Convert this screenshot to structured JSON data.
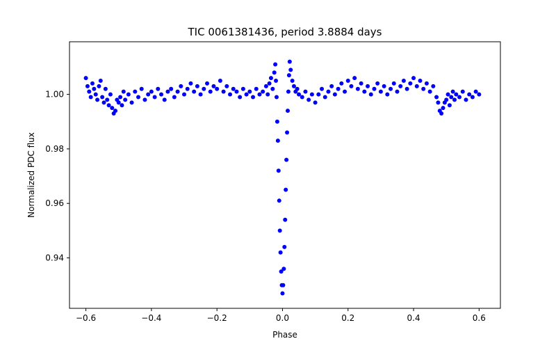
{
  "chart_data": {
    "type": "scatter",
    "title": "TIC 0061381436, period 3.8884 days",
    "xlabel": "Phase",
    "ylabel": "Normalized PDC flux",
    "xlim": [
      -0.65,
      0.665
    ],
    "ylim": [
      0.9215,
      1.0193
    ],
    "x_ticks": [
      -0.6,
      -0.4,
      -0.2,
      0.0,
      0.2,
      0.4,
      0.6
    ],
    "x_tick_labels": [
      "−0.6",
      "−0.4",
      "−0.2",
      "0.0",
      "0.2",
      "0.4",
      "0.6"
    ],
    "y_ticks": [
      0.94,
      0.96,
      0.98,
      1.0
    ],
    "y_tick_labels": [
      "0.94",
      "0.96",
      "0.98",
      "1.00"
    ],
    "grid": false,
    "legend": "none",
    "marker_color": "#0000ff",
    "series": [
      {
        "points": [
          [
            -0.6,
            1.006
          ],
          [
            -0.595,
            1.003
          ],
          [
            -0.59,
            1.001
          ],
          [
            -0.585,
            0.999
          ],
          [
            -0.58,
            1.004
          ],
          [
            -0.575,
            1.002
          ],
          [
            -0.57,
            1.0
          ],
          [
            -0.565,
            0.998
          ],
          [
            -0.56,
            1.003
          ],
          [
            -0.555,
            1.005
          ],
          [
            -0.55,
            0.999
          ],
          [
            -0.545,
            0.997
          ],
          [
            -0.54,
            1.002
          ],
          [
            -0.535,
            0.998
          ],
          [
            -0.53,
            0.996
          ],
          [
            -0.525,
            1.0
          ],
          [
            -0.52,
            0.995
          ],
          [
            -0.515,
            0.993
          ],
          [
            -0.51,
            0.994
          ],
          [
            -0.505,
            0.998
          ],
          [
            -0.5,
            0.997
          ],
          [
            -0.495,
            0.999
          ],
          [
            -0.49,
            0.996
          ],
          [
            -0.485,
            1.001
          ],
          [
            -0.48,
            0.998
          ],
          [
            -0.47,
            1.0
          ],
          [
            -0.46,
            0.997
          ],
          [
            -0.45,
            1.001
          ],
          [
            -0.44,
            0.999
          ],
          [
            -0.43,
            1.002
          ],
          [
            -0.42,
            0.998
          ],
          [
            -0.41,
            1.0
          ],
          [
            -0.4,
            1.001
          ],
          [
            -0.39,
            0.999
          ],
          [
            -0.38,
            1.002
          ],
          [
            -0.37,
            1.0
          ],
          [
            -0.36,
            0.998
          ],
          [
            -0.35,
            1.001
          ],
          [
            -0.34,
            1.002
          ],
          [
            -0.33,
            0.999
          ],
          [
            -0.32,
            1.001
          ],
          [
            -0.31,
            1.003
          ],
          [
            -0.3,
            1.0
          ],
          [
            -0.29,
            1.002
          ],
          [
            -0.28,
            1.004
          ],
          [
            -0.27,
            1.001
          ],
          [
            -0.26,
            1.003
          ],
          [
            -0.25,
            1.0
          ],
          [
            -0.24,
            1.002
          ],
          [
            -0.23,
            1.004
          ],
          [
            -0.22,
            1.001
          ],
          [
            -0.21,
            1.003
          ],
          [
            -0.2,
            1.002
          ],
          [
            -0.19,
            1.005
          ],
          [
            -0.18,
            1.001
          ],
          [
            -0.17,
            1.003
          ],
          [
            -0.16,
            1.0
          ],
          [
            -0.15,
            1.002
          ],
          [
            -0.14,
            1.001
          ],
          [
            -0.13,
            0.999
          ],
          [
            -0.12,
            1.002
          ],
          [
            -0.11,
            1.0
          ],
          [
            -0.1,
            1.001
          ],
          [
            -0.09,
            0.999
          ],
          [
            -0.08,
            1.002
          ],
          [
            -0.07,
            1.0
          ],
          [
            -0.06,
            1.001
          ],
          [
            -0.05,
            1.003
          ],
          [
            -0.045,
            1.0
          ],
          [
            -0.04,
            1.004
          ],
          [
            -0.035,
            1.006
          ],
          [
            -0.03,
            1.002
          ],
          [
            -0.025,
            1.008
          ],
          [
            -0.022,
            1.011
          ],
          [
            -0.02,
            1.005
          ],
          [
            -0.018,
            0.999
          ],
          [
            -0.016,
            0.99
          ],
          [
            -0.014,
            0.983
          ],
          [
            -0.012,
            0.972
          ],
          [
            -0.01,
            0.961
          ],
          [
            -0.008,
            0.95
          ],
          [
            -0.006,
            0.942
          ],
          [
            -0.004,
            0.935
          ],
          [
            -0.002,
            0.93
          ],
          [
            0.0,
            0.927
          ],
          [
            0.002,
            0.93
          ],
          [
            0.004,
            0.936
          ],
          [
            0.006,
            0.944
          ],
          [
            0.008,
            0.954
          ],
          [
            0.01,
            0.965
          ],
          [
            0.012,
            0.976
          ],
          [
            0.014,
            0.986
          ],
          [
            0.016,
            0.994
          ],
          [
            0.018,
            1.001
          ],
          [
            0.02,
            1.007
          ],
          [
            0.022,
            1.012
          ],
          [
            0.025,
            1.009
          ],
          [
            0.03,
            1.005
          ],
          [
            0.035,
            1.003
          ],
          [
            0.04,
            1.001
          ],
          [
            0.045,
            1.002
          ],
          [
            0.05,
            1.0
          ],
          [
            0.06,
            0.999
          ],
          [
            0.07,
            1.001
          ],
          [
            0.08,
            0.998
          ],
          [
            0.09,
            1.0
          ],
          [
            0.1,
            0.997
          ],
          [
            0.11,
            1.0
          ],
          [
            0.12,
            1.002
          ],
          [
            0.13,
            0.999
          ],
          [
            0.14,
            1.001
          ],
          [
            0.15,
            1.003
          ],
          [
            0.16,
            1.0
          ],
          [
            0.17,
            1.002
          ],
          [
            0.18,
            1.004
          ],
          [
            0.19,
            1.001
          ],
          [
            0.2,
            1.005
          ],
          [
            0.21,
            1.003
          ],
          [
            0.22,
            1.006
          ],
          [
            0.23,
            1.002
          ],
          [
            0.24,
            1.004
          ],
          [
            0.25,
            1.001
          ],
          [
            0.26,
            1.003
          ],
          [
            0.27,
            1.0
          ],
          [
            0.28,
            1.002
          ],
          [
            0.29,
            1.004
          ],
          [
            0.3,
            1.001
          ],
          [
            0.31,
            1.003
          ],
          [
            0.32,
            1.0
          ],
          [
            0.33,
            1.002
          ],
          [
            0.34,
            1.004
          ],
          [
            0.35,
            1.001
          ],
          [
            0.36,
            1.003
          ],
          [
            0.37,
            1.005
          ],
          [
            0.38,
            1.002
          ],
          [
            0.39,
            1.004
          ],
          [
            0.4,
            1.006
          ],
          [
            0.41,
            1.003
          ],
          [
            0.42,
            1.005
          ],
          [
            0.43,
            1.002
          ],
          [
            0.44,
            1.004
          ],
          [
            0.45,
            1.001
          ],
          [
            0.46,
            1.003
          ],
          [
            0.47,
            0.999
          ],
          [
            0.475,
            0.997
          ],
          [
            0.48,
            0.994
          ],
          [
            0.485,
            0.993
          ],
          [
            0.49,
            0.995
          ],
          [
            0.495,
            0.997
          ],
          [
            0.5,
            0.998
          ],
          [
            0.505,
            1.0
          ],
          [
            0.51,
            0.996
          ],
          [
            0.515,
            0.999
          ],
          [
            0.52,
            1.001
          ],
          [
            0.525,
            0.998
          ],
          [
            0.53,
            1.0
          ],
          [
            0.54,
            0.999
          ],
          [
            0.55,
            1.001
          ],
          [
            0.56,
            0.998
          ],
          [
            0.57,
            1.0
          ],
          [
            0.58,
            0.999
          ],
          [
            0.59,
            1.001
          ],
          [
            0.6,
            1.0
          ]
        ]
      }
    ]
  }
}
